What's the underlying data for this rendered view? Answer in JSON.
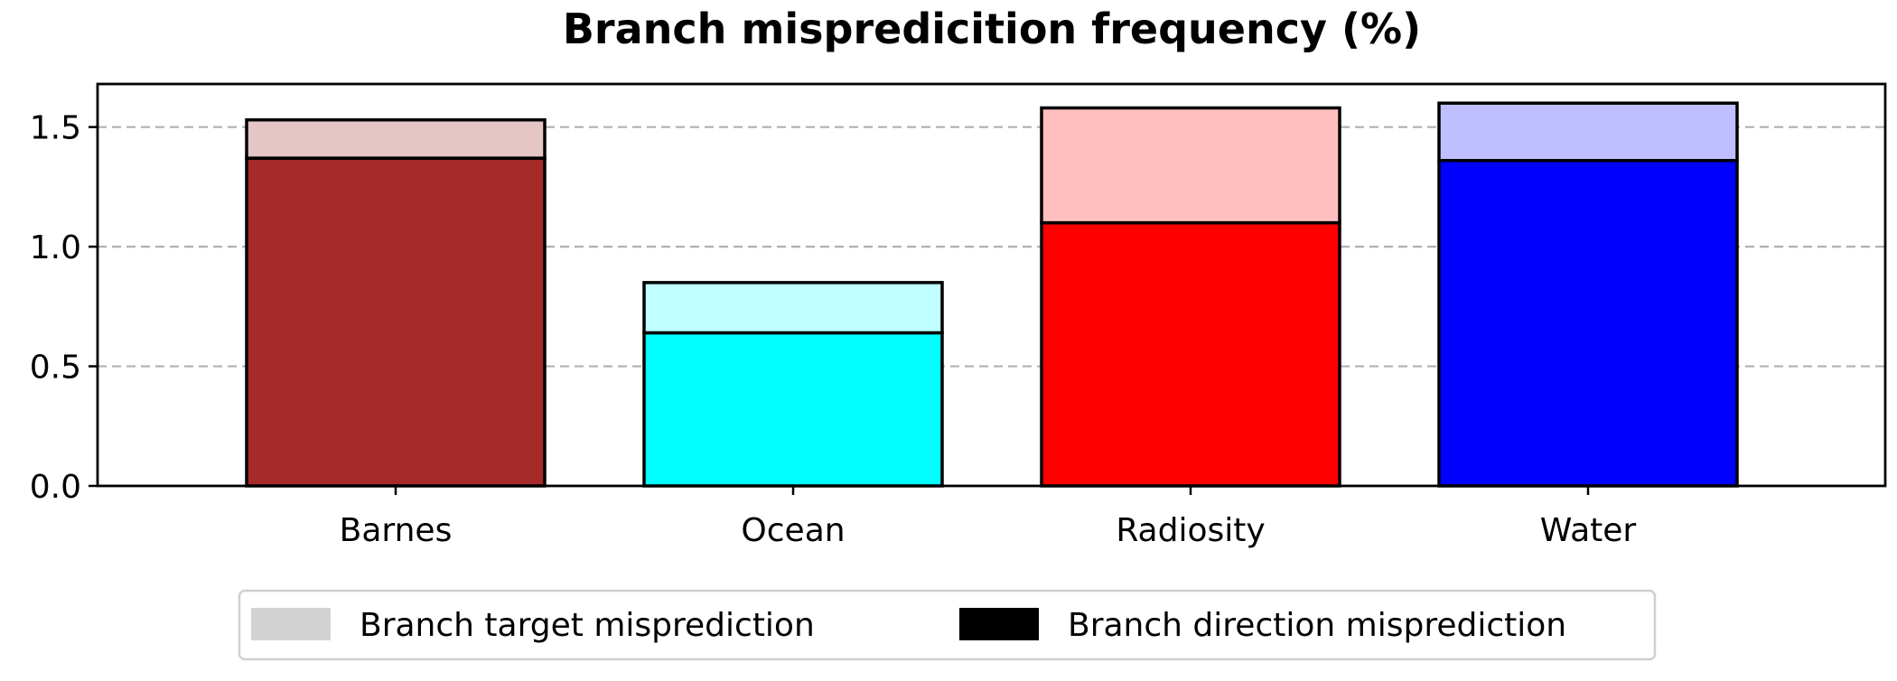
{
  "chart_data": {
    "type": "bar",
    "stacked": true,
    "title": "Branch mispredicition frequency (%)",
    "xlabel": "",
    "ylabel": "",
    "categories": [
      "Barnes",
      "Ocean",
      "Radiosity",
      "Water"
    ],
    "ylim": [
      0,
      1.68
    ],
    "yticks": [
      0.0,
      0.5,
      1.0,
      1.5
    ],
    "ytick_labels": [
      "0.0",
      "0.5",
      "1.0",
      "1.5"
    ],
    "grid": "horizontal dashed",
    "legend_position": "bottom-center",
    "series": [
      {
        "name": "Branch direction misprediction",
        "values": [
          1.37,
          0.64,
          1.1,
          1.36
        ],
        "colors": [
          "#a52a2a",
          "#00ffff",
          "#ff0000",
          "#0000ff"
        ],
        "legend_color": "#000000"
      },
      {
        "name": "Branch target misprediction",
        "values": [
          0.16,
          0.21,
          0.48,
          0.24
        ],
        "colors": [
          "#e4c6c6",
          "#bfffff",
          "#ffbfbf",
          "#bfbfff"
        ],
        "legend_color": "#d3d3d3"
      }
    ],
    "totals": [
      1.53,
      0.85,
      1.58,
      1.6
    ]
  },
  "legend": {
    "items": [
      {
        "label": "Branch target misprediction",
        "color": "#d3d3d3"
      },
      {
        "label": "Branch direction misprediction",
        "color": "#000000"
      }
    ]
  }
}
